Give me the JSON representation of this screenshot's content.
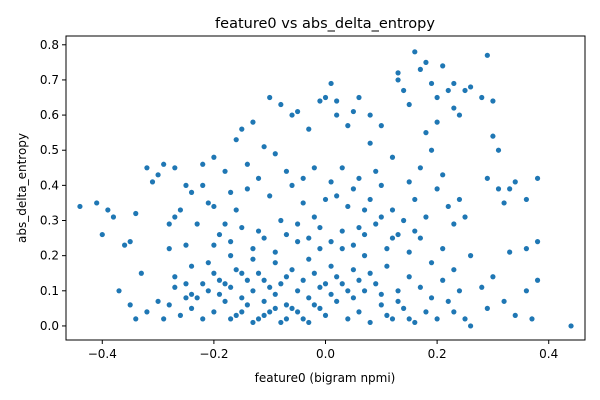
{
  "chart_data": {
    "type": "scatter",
    "title": "feature0 vs abs_delta_entropy",
    "xlabel": "feature0 (bigram npmi)",
    "ylabel": "abs_delta_entropy",
    "xlim": [
      -0.465,
      0.465
    ],
    "ylim": [
      -0.04,
      0.825
    ],
    "x_ticks": [
      -0.4,
      -0.2,
      0.0,
      0.2,
      0.4
    ],
    "x_tick_labels": [
      "−0.4",
      "−0.2",
      "0.0",
      "0.2",
      "0.4"
    ],
    "y_ticks": [
      0.0,
      0.1,
      0.2,
      0.3,
      0.4,
      0.5,
      0.6,
      0.7,
      0.8
    ],
    "y_tick_labels": [
      "0.0",
      "0.1",
      "0.2",
      "0.3",
      "0.4",
      "0.5",
      "0.6",
      "0.7",
      "0.8"
    ],
    "grid": false,
    "marker_color": "#1f77b4",
    "series": [
      {
        "points": [
          [
            -0.44,
            0.34
          ],
          [
            -0.41,
            0.35
          ],
          [
            -0.4,
            0.26
          ],
          [
            -0.39,
            0.33
          ],
          [
            -0.38,
            0.31
          ],
          [
            -0.36,
            0.23
          ],
          [
            -0.37,
            0.1
          ],
          [
            -0.35,
            0.24
          ],
          [
            -0.34,
            0.32
          ],
          [
            -0.33,
            0.15
          ],
          [
            -0.35,
            0.06
          ],
          [
            -0.34,
            0.02
          ],
          [
            -0.32,
            0.45
          ],
          [
            -0.3,
            0.43
          ],
          [
            -0.32,
            0.04
          ],
          [
            -0.3,
            0.07
          ],
          [
            -0.29,
            0.02
          ],
          [
            -0.31,
            0.41
          ],
          [
            -0.29,
            0.46
          ],
          [
            -0.27,
            0.45
          ],
          [
            -0.25,
            0.4
          ],
          [
            -0.28,
            0.29
          ],
          [
            -0.27,
            0.31
          ],
          [
            -0.26,
            0.33
          ],
          [
            -0.25,
            0.23
          ],
          [
            -0.28,
            0.22
          ],
          [
            -0.27,
            0.14
          ],
          [
            -0.25,
            0.12
          ],
          [
            -0.24,
            0.17
          ],
          [
            -0.24,
            0.09
          ],
          [
            -0.22,
            0.46
          ],
          [
            -0.21,
            0.35
          ],
          [
            -0.2,
            0.48
          ],
          [
            -0.18,
            0.44
          ],
          [
            -0.16,
            0.53
          ],
          [
            -0.15,
            0.56
          ],
          [
            -0.13,
            0.58
          ],
          [
            -0.11,
            0.51
          ],
          [
            -0.09,
            0.49
          ],
          [
            -0.1,
            0.65
          ],
          [
            -0.08,
            0.63
          ],
          [
            -0.05,
            0.61
          ],
          [
            -0.06,
            0.6
          ],
          [
            -0.03,
            0.56
          ],
          [
            -0.01,
            0.64
          ],
          [
            0.0,
            0.65
          ],
          [
            0.02,
            0.64
          ],
          [
            0.01,
            0.69
          ],
          [
            0.02,
            0.6
          ],
          [
            0.04,
            0.57
          ],
          [
            0.05,
            0.61
          ],
          [
            0.06,
            0.65
          ],
          [
            0.08,
            0.6
          ],
          [
            0.08,
            0.52
          ],
          [
            0.1,
            0.57
          ],
          [
            0.12,
            0.48
          ],
          [
            0.13,
            0.7
          ],
          [
            0.14,
            0.67
          ],
          [
            0.13,
            0.72
          ],
          [
            0.15,
            0.63
          ],
          [
            0.16,
            0.78
          ],
          [
            0.17,
            0.73
          ],
          [
            0.18,
            0.75
          ],
          [
            0.19,
            0.69
          ],
          [
            0.21,
            0.74
          ],
          [
            0.2,
            0.65
          ],
          [
            0.22,
            0.67
          ],
          [
            0.23,
            0.69
          ],
          [
            0.23,
            0.62
          ],
          [
            0.24,
            0.6
          ],
          [
            0.25,
            0.67
          ],
          [
            0.26,
            0.68
          ],
          [
            0.28,
            0.65
          ],
          [
            0.29,
            0.77
          ],
          [
            0.3,
            0.64
          ],
          [
            0.3,
            0.54
          ],
          [
            0.31,
            0.5
          ],
          [
            0.29,
            0.42
          ],
          [
            0.31,
            0.39
          ],
          [
            0.32,
            0.35
          ],
          [
            0.33,
            0.39
          ],
          [
            0.34,
            0.41
          ],
          [
            0.36,
            0.36
          ],
          [
            0.38,
            0.42
          ],
          [
            0.38,
            0.24
          ],
          [
            0.36,
            0.22
          ],
          [
            0.33,
            0.21
          ],
          [
            0.38,
            0.13
          ],
          [
            0.36,
            0.1
          ],
          [
            0.34,
            0.03
          ],
          [
            0.37,
            0.02
          ],
          [
            0.44,
            0.0
          ],
          [
            0.32,
            0.07
          ],
          [
            0.3,
            0.14
          ],
          [
            0.29,
            0.05
          ],
          [
            0.28,
            0.11
          ],
          [
            0.26,
            0.0
          ],
          [
            0.25,
            0.02
          ],
          [
            0.26,
            0.2
          ],
          [
            0.25,
            0.31
          ],
          [
            0.24,
            0.36
          ],
          [
            0.23,
            0.29
          ],
          [
            0.22,
            0.34
          ],
          [
            0.21,
            0.43
          ],
          [
            0.2,
            0.39
          ],
          [
            0.19,
            0.5
          ],
          [
            0.2,
            0.58
          ],
          [
            0.18,
            0.55
          ],
          [
            0.17,
            0.45
          ],
          [
            0.16,
            0.36
          ],
          [
            0.15,
            0.41
          ],
          [
            0.14,
            0.3
          ],
          [
            0.12,
            0.25
          ],
          [
            0.1,
            0.4
          ],
          [
            0.09,
            0.44
          ],
          [
            0.07,
            0.33
          ],
          [
            0.06,
            0.28
          ],
          [
            0.05,
            0.39
          ],
          [
            0.03,
            0.45
          ],
          [
            0.01,
            0.41
          ],
          [
            0.0,
            0.36
          ],
          [
            -0.02,
            0.31
          ],
          [
            -0.04,
            0.35
          ],
          [
            -0.06,
            0.4
          ],
          [
            -0.08,
            0.3
          ],
          [
            -0.1,
            0.37
          ],
          [
            -0.12,
            0.27
          ],
          [
            -0.14,
            0.39
          ],
          [
            -0.16,
            0.33
          ],
          [
            -0.18,
            0.29
          ],
          [
            -0.2,
            0.23
          ],
          [
            -0.21,
            0.18
          ],
          [
            -0.19,
            0.13
          ],
          [
            -0.17,
            0.2
          ],
          [
            -0.15,
            0.15
          ],
          [
            -0.13,
            0.19
          ],
          [
            -0.11,
            0.13
          ],
          [
            -0.09,
            0.18
          ],
          [
            -0.07,
            0.14
          ],
          [
            -0.05,
            0.24
          ],
          [
            -0.03,
            0.19
          ],
          [
            -0.01,
            0.22
          ],
          [
            0.01,
            0.17
          ],
          [
            0.03,
            0.22
          ],
          [
            0.05,
            0.16
          ],
          [
            0.07,
            0.2
          ],
          [
            0.09,
            0.12
          ],
          [
            0.11,
            0.17
          ],
          [
            0.13,
            0.1
          ],
          [
            0.15,
            0.14
          ],
          [
            0.17,
            0.11
          ],
          [
            0.19,
            0.08
          ],
          [
            0.21,
            0.13
          ],
          [
            0.22,
            0.07
          ],
          [
            0.24,
            0.1
          ],
          [
            0.23,
            0.04
          ],
          [
            0.2,
            0.02
          ],
          [
            0.18,
            0.04
          ],
          [
            0.16,
            0.01
          ],
          [
            0.14,
            0.05
          ],
          [
            0.12,
            0.02
          ],
          [
            0.1,
            0.06
          ],
          [
            0.08,
            0.01
          ],
          [
            0.06,
            0.04
          ],
          [
            0.04,
            0.02
          ],
          [
            0.02,
            0.07
          ],
          [
            0.0,
            0.03
          ],
          [
            -0.02,
            0.06
          ],
          [
            -0.04,
            0.02
          ],
          [
            -0.06,
            0.05
          ],
          [
            -0.08,
            0.01
          ],
          [
            -0.1,
            0.04
          ],
          [
            -0.12,
            0.02
          ],
          [
            -0.14,
            0.06
          ],
          [
            -0.16,
            0.03
          ],
          [
            -0.18,
            0.07
          ],
          [
            -0.2,
            0.04
          ],
          [
            -0.22,
            0.02
          ],
          [
            -0.24,
            0.05
          ],
          [
            -0.26,
            0.03
          ],
          [
            -0.28,
            0.06
          ],
          [
            -0.23,
            0.08
          ],
          [
            -0.21,
            0.1
          ],
          [
            -0.19,
            0.09
          ],
          [
            -0.17,
            0.11
          ],
          [
            -0.15,
            0.08
          ],
          [
            -0.13,
            0.1
          ],
          [
            -0.11,
            0.07
          ],
          [
            -0.09,
            0.09
          ],
          [
            -0.07,
            0.06
          ],
          [
            -0.05,
            0.1
          ],
          [
            -0.03,
            0.08
          ],
          [
            -0.01,
            0.11
          ],
          [
            0.01,
            0.09
          ],
          [
            0.03,
            0.12
          ],
          [
            0.05,
            0.08
          ],
          [
            0.07,
            0.1
          ],
          [
            -0.22,
            0.12
          ],
          [
            -0.2,
            0.15
          ],
          [
            -0.18,
            0.12
          ],
          [
            -0.16,
            0.16
          ],
          [
            -0.14,
            0.13
          ],
          [
            -0.12,
            0.15
          ],
          [
            -0.1,
            0.11
          ],
          [
            -0.08,
            0.12
          ],
          [
            -0.06,
            0.16
          ],
          [
            -0.04,
            0.13
          ],
          [
            -0.02,
            0.15
          ],
          [
            0.0,
            0.12
          ],
          [
            0.02,
            0.14
          ],
          [
            0.04,
            0.1
          ],
          [
            0.06,
            0.13
          ],
          [
            0.08,
            0.15
          ],
          [
            0.1,
            0.09
          ],
          [
            -0.17,
            0.02
          ],
          [
            -0.15,
            0.04
          ],
          [
            -0.13,
            0.01
          ],
          [
            -0.11,
            0.03
          ],
          [
            -0.09,
            0.05
          ],
          [
            -0.07,
            0.02
          ],
          [
            -0.05,
            0.04
          ],
          [
            -0.03,
            0.01
          ],
          [
            -0.01,
            0.05
          ],
          [
            0.11,
            0.03
          ],
          [
            0.13,
            0.07
          ],
          [
            0.15,
            0.02
          ],
          [
            -0.25,
            0.08
          ],
          [
            -0.27,
            0.11
          ],
          [
            -0.19,
            0.26
          ],
          [
            -0.17,
            0.24
          ],
          [
            -0.15,
            0.28
          ],
          [
            -0.13,
            0.22
          ],
          [
            -0.11,
            0.25
          ],
          [
            -0.09,
            0.21
          ],
          [
            -0.07,
            0.26
          ],
          [
            -0.05,
            0.29
          ],
          [
            -0.03,
            0.25
          ],
          [
            -0.01,
            0.28
          ],
          [
            0.01,
            0.24
          ],
          [
            0.03,
            0.27
          ],
          [
            0.05,
            0.23
          ],
          [
            0.07,
            0.26
          ],
          [
            0.09,
            0.29
          ],
          [
            0.11,
            0.22
          ],
          [
            0.13,
            0.26
          ],
          [
            0.15,
            0.21
          ],
          [
            0.17,
            0.25
          ],
          [
            0.19,
            0.18
          ],
          [
            0.21,
            0.22
          ],
          [
            0.23,
            0.16
          ],
          [
            0.18,
            0.31
          ],
          [
            0.16,
            0.27
          ],
          [
            0.12,
            0.33
          ],
          [
            0.1,
            0.31
          ],
          [
            0.08,
            0.36
          ],
          [
            0.06,
            0.42
          ],
          [
            0.04,
            0.34
          ],
          [
            0.02,
            0.37
          ],
          [
            -0.02,
            0.45
          ],
          [
            -0.04,
            0.42
          ],
          [
            -0.07,
            0.44
          ],
          [
            -0.12,
            0.42
          ],
          [
            -0.14,
            0.46
          ],
          [
            -0.17,
            0.38
          ],
          [
            -0.2,
            0.34
          ],
          [
            -0.23,
            0.29
          ],
          [
            -0.24,
            0.38
          ],
          [
            -0.22,
            0.4
          ]
        ]
      }
    ]
  }
}
